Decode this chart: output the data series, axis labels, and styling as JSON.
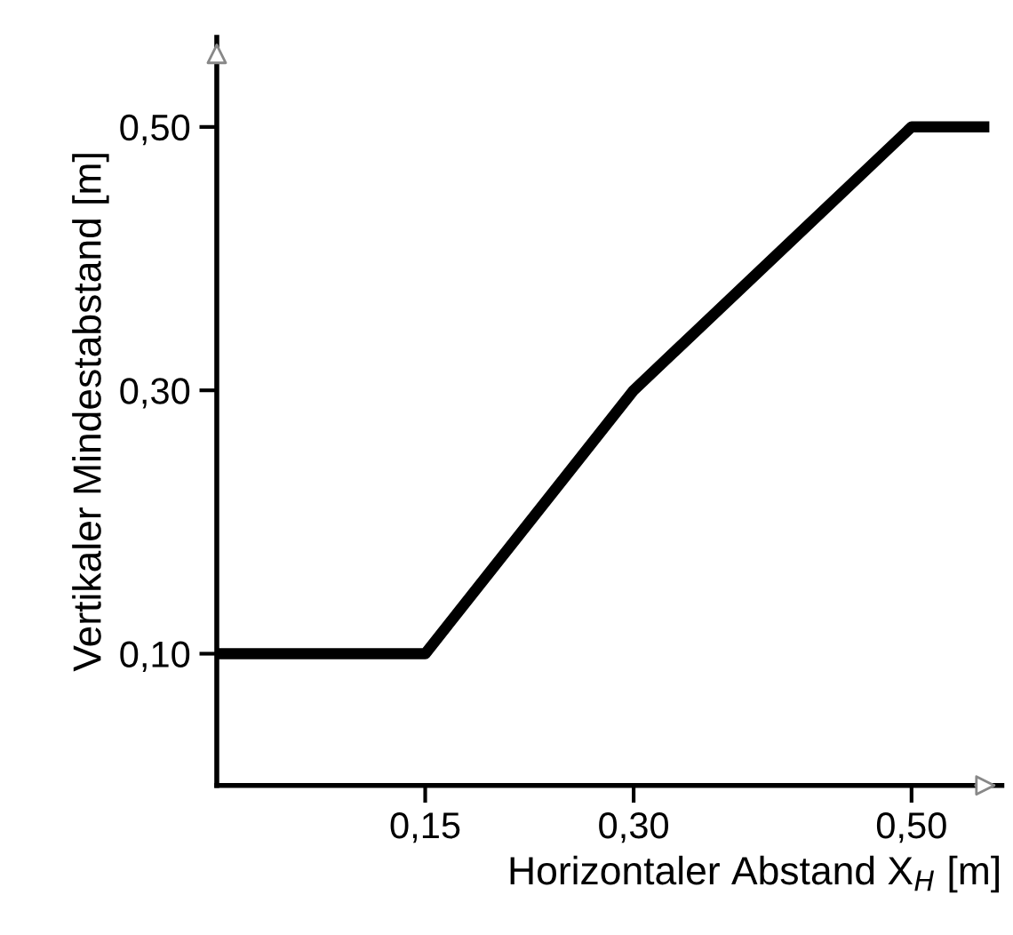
{
  "chart_data": {
    "type": "line",
    "xlabel": "Horizontaler Abstand X$_{H}$ [m]",
    "ylabel": "Vertikaler Mindestabstand [m]",
    "x": [
      0,
      0.15,
      0.3,
      0.5,
      0.556
    ],
    "series": [
      {
        "color": "#000000",
        "values": [
          0.1,
          0.1,
          0.3,
          0.5,
          0.5
        ]
      }
    ],
    "xlim": [
      0,
      0.565
    ],
    "ylim": [
      0,
      0.568
    ],
    "xticks": [
      {
        "value": 0.15,
        "label": "0,15"
      },
      {
        "value": 0.3,
        "label": "0,30"
      },
      {
        "value": 0.5,
        "label": "0,50"
      }
    ],
    "yticks": [
      {
        "value": 0.1,
        "label": "0,10"
      },
      {
        "value": 0.3,
        "label": "0,30"
      },
      {
        "value": 0.5,
        "label": "0,50"
      }
    ],
    "grid": false,
    "legend": false,
    "marker": "none",
    "line_style": "solid"
  }
}
